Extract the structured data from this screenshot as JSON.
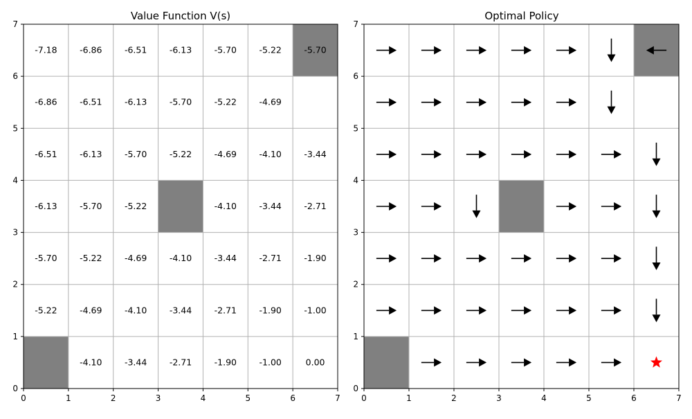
{
  "chart_data": [
    {
      "type": "heatmap",
      "title": "Value Function V(s)",
      "xlim": [
        0,
        7
      ],
      "ylim": [
        0,
        7
      ],
      "xticks": [
        "0",
        "1",
        "2",
        "3",
        "4",
        "5",
        "6",
        "7"
      ],
      "yticks": [
        "0",
        "1",
        "2",
        "3",
        "4",
        "5",
        "6",
        "7"
      ],
      "grid": true,
      "obstacle_color": "#808080",
      "grid_color": "#b0b0b0",
      "obstacles": [
        [
          6,
          6
        ],
        [
          3,
          3
        ],
        [
          0,
          0
        ]
      ],
      "rows_top_to_bottom": [
        [
          "-7.18",
          "-6.86",
          "-6.51",
          "-6.13",
          "-5.70",
          "-5.22",
          "-5.70"
        ],
        [
          "-6.86",
          "-6.51",
          "-6.13",
          "-5.70",
          "-5.22",
          "-4.69",
          ""
        ],
        [
          "-6.51",
          "-6.13",
          "-5.70",
          "-5.22",
          "-4.69",
          "-4.10",
          "-3.44"
        ],
        [
          "-6.13",
          "-5.70",
          "-5.22",
          "",
          "-4.10",
          "-3.44",
          "-2.71"
        ],
        [
          "-5.70",
          "-5.22",
          "-4.69",
          "-4.10",
          "-3.44",
          "-2.71",
          "-1.90"
        ],
        [
          "-5.22",
          "-4.69",
          "-4.10",
          "-3.44",
          "-2.71",
          "-1.90",
          "-1.00"
        ],
        [
          "",
          "-4.10",
          "-3.44",
          "-2.71",
          "-1.90",
          "-1.00",
          "0.00"
        ]
      ]
    },
    {
      "type": "quiver",
      "title": "Optimal Policy",
      "xlim": [
        0,
        7
      ],
      "ylim": [
        0,
        7
      ],
      "xticks": [
        "0",
        "1",
        "2",
        "3",
        "4",
        "5",
        "6",
        "7"
      ],
      "yticks": [
        "0",
        "1",
        "2",
        "3",
        "4",
        "5",
        "6",
        "7"
      ],
      "grid": true,
      "obstacle_color": "#808080",
      "arrow_color": "#000000",
      "goal_color": "#ff0000",
      "goal_marker": "star",
      "goal_cell": [
        6,
        0
      ],
      "obstacles": [
        [
          6,
          6
        ],
        [
          3,
          3
        ],
        [
          0,
          0
        ]
      ],
      "actions_top_to_bottom": [
        [
          "right",
          "right",
          "right",
          "right",
          "right",
          "down",
          "left"
        ],
        [
          "right",
          "right",
          "right",
          "right",
          "right",
          "down",
          ""
        ],
        [
          "right",
          "right",
          "right",
          "right",
          "right",
          "right",
          "down"
        ],
        [
          "right",
          "right",
          "down",
          "",
          "right",
          "right",
          "down"
        ],
        [
          "right",
          "right",
          "right",
          "right",
          "right",
          "right",
          "down"
        ],
        [
          "right",
          "right",
          "right",
          "right",
          "right",
          "right",
          "down"
        ],
        [
          "",
          "right",
          "right",
          "right",
          "right",
          "right",
          "goal"
        ]
      ]
    }
  ]
}
